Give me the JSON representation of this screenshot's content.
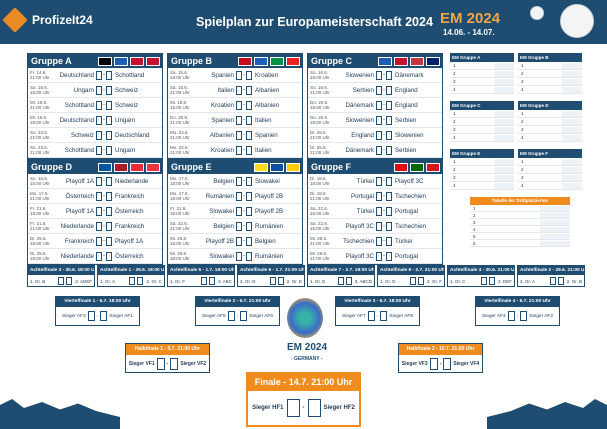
{
  "brand": "ProfizeIt24",
  "title": "Spielplan zur Europameisterschaft 2024",
  "event": "EM 2024",
  "dates": "14.06. - 14.07.",
  "groups": [
    {
      "name": "Gruppe A",
      "flags": [
        "#000000",
        "#1d5fb8",
        "#c8102e",
        "#c8102e"
      ],
      "matches": [
        {
          "d": "Fr. 14.6. 21:00 Uhr",
          "a": "Deutschland",
          "b": "Schottland"
        },
        {
          "d": "Sa. 15.6. 15:00 Uhr",
          "a": "Ungarn",
          "b": "Schweiz"
        },
        {
          "d": "Mi. 19.6. 21:00 Uhr",
          "a": "Schottland",
          "b": "Schweiz"
        },
        {
          "d": "Mi. 19.6. 18:00 Uhr",
          "a": "Deutschland",
          "b": "Ungarn"
        },
        {
          "d": "So. 23.6. 21:00 Uhr",
          "a": "Schweiz",
          "b": "Deutschland"
        },
        {
          "d": "So. 23.6. 21:00 Uhr",
          "a": "Schottland",
          "b": "Ungarn"
        }
      ]
    },
    {
      "name": "Gruppe B",
      "flags": [
        "#c60b1e",
        "#1d5fb8",
        "#009246",
        "#e22"
      ],
      "matches": [
        {
          "d": "Sa. 15.6. 18:00 Uhr",
          "a": "Spanien",
          "b": "Kroatien"
        },
        {
          "d": "Sa. 15.6. 21:00 Uhr",
          "a": "Italien",
          "b": "Albanien"
        },
        {
          "d": "Mi. 19.6. 15:00 Uhr",
          "a": "Kroatien",
          "b": "Albanien"
        },
        {
          "d": "Do. 20.6. 21:00 Uhr",
          "a": "Spanien",
          "b": "Italien"
        },
        {
          "d": "Mo. 24.6. 21:00 Uhr",
          "a": "Albanien",
          "b": "Spanien"
        },
        {
          "d": "Mo. 24.6. 21:00 Uhr",
          "a": "Kroatien",
          "b": "Italien"
        }
      ]
    },
    {
      "name": "Gruppe C",
      "flags": [
        "#1d5fb8",
        "#c8102e",
        "#c6363c",
        "#012169"
      ],
      "matches": [
        {
          "d": "So. 16.6. 18:00 Uhr",
          "a": "Slowenien",
          "b": "Dänemark"
        },
        {
          "d": "So. 16.6. 21:00 Uhr",
          "a": "Serbien",
          "b": "England"
        },
        {
          "d": "Do. 20.6. 18:00 Uhr",
          "a": "Dänemark",
          "b": "England"
        },
        {
          "d": "Do. 20.6. 18:00 Uhr",
          "a": "Slowenien",
          "b": "Serbien"
        },
        {
          "d": "Di. 25.6. 21:00 Uhr",
          "a": "England",
          "b": "Slowenien"
        },
        {
          "d": "Di. 25.6. 21:00 Uhr",
          "a": "Dänemark",
          "b": "Serbien"
        }
      ]
    },
    {
      "name": "Gruppe D",
      "flags": [
        "#0055a4",
        "#ae1c28",
        "#ed2939",
        "#ef3340"
      ],
      "matches": [
        {
          "d": "So. 16.6. 15:00 Uhr",
          "a": "Playoff 1A",
          "b": "Niederlande"
        },
        {
          "d": "Mo. 17.6. 21:00 Uhr",
          "a": "Österreich",
          "b": "Frankreich"
        },
        {
          "d": "Fr. 21.6. 18:00 Uhr",
          "a": "Playoff 1A",
          "b": "Österreich"
        },
        {
          "d": "Fr. 21.6. 21:00 Uhr",
          "a": "Niederlande",
          "b": "Frankreich"
        },
        {
          "d": "Di. 25.6. 18:00 Uhr",
          "a": "Frankreich",
          "b": "Playoff 1A"
        },
        {
          "d": "Di. 25.6. 18:00 Uhr",
          "a": "Niederlande",
          "b": "Österreich"
        }
      ]
    },
    {
      "name": "Gruppe E",
      "flags": [
        "#fdda24",
        "#0b4ea2",
        "#ffcd00"
      ],
      "matches": [
        {
          "d": "Mo. 17.6. 18:00 Uhr",
          "a": "Belgien",
          "b": "Slowakei"
        },
        {
          "d": "Mo. 17.6. 15:00 Uhr",
          "a": "Rumänien",
          "b": "Playoff 2B"
        },
        {
          "d": "Fr. 21.6. 15:00 Uhr",
          "a": "Slowakei",
          "b": "Playoff 2B"
        },
        {
          "d": "Sa. 22.6. 21:00 Uhr",
          "a": "Belgien",
          "b": "Rumänien"
        },
        {
          "d": "Mi. 26.6. 18:00 Uhr",
          "a": "Playoff 2B",
          "b": "Belgien"
        },
        {
          "d": "Mi. 26.6. 18:00 Uhr",
          "a": "Slowakei",
          "b": "Rumänien"
        }
      ]
    },
    {
      "name": "Gruppe F",
      "flags": [
        "#e30a17",
        "#006600",
        "#d7141a"
      ],
      "matches": [
        {
          "d": "Di. 18.6. 18:00 Uhr",
          "a": "Türkei",
          "b": "Playoff 3C"
        },
        {
          "d": "Di. 18.6. 21:00 Uhr",
          "a": "Portugal",
          "b": "Tschechien"
        },
        {
          "d": "Sa. 22.6. 15:00 Uhr",
          "a": "Türkei",
          "b": "Portugal"
        },
        {
          "d": "Sa. 22.6. 18:00 Uhr",
          "a": "Playoff 3C",
          "b": "Tschechien"
        },
        {
          "d": "Mi. 26.6. 21:00 Uhr",
          "a": "Tschechien",
          "b": "Türkei"
        },
        {
          "d": "Mi. 26.6. 21:00 Uhr",
          "a": "Playoff 3C",
          "b": "Portugal"
        }
      ]
    }
  ],
  "standings": [
    "EM Gruppe A",
    "EM Gruppe B",
    "EM Gruppe C",
    "EM Gruppe D",
    "EM Gruppe E",
    "EM Gruppe F"
  ],
  "third_title": "Tabelle der Drittplatzierten",
  "r16": [
    {
      "h": "Achtelfinale 3 - 30.6. 18:00 Uhr",
      "l": "1. Gr. B",
      "r": "3. ADEF"
    },
    {
      "h": "Achtelfinale 1 - 29.6. 18:00 Uhr",
      "l": "1. Gr. A",
      "r": "2. Gr. C"
    },
    {
      "h": "Achtelfinale 5 - 1.7. 18:00 Uhr",
      "l": "1. Gr. F",
      "r": "3. ABC"
    },
    {
      "h": "Achtelfinale 6 - 1.7. 21:00 Uhr",
      "l": "2. Gr. D",
      "r": "2. Gr. E"
    },
    {
      "h": "Achtelfinale 7 - 2.7. 18:00 Uhr",
      "l": "1. Gr. E",
      "r": "3. ABCD"
    },
    {
      "h": "Achtelfinale 8 - 2.7. 21:00 Uhr",
      "l": "1. Gr. D",
      "r": "2. Gr. F"
    },
    {
      "h": "Achtelfinale 4 - 30.6. 21:00 Uhr",
      "l": "1. Gr. C",
      "r": "3. DEF"
    },
    {
      "h": "Achtelfinale 2 - 29.6. 21:00 Uhr",
      "l": "2. Gr. A",
      "r": "2. Gr. B"
    }
  ],
  "qf": [
    {
      "h": "Viertelfinale 1 - 5.7. 18:00 Uhr",
      "l": "Sieger AF3",
      "r": "Sieger AF1"
    },
    {
      "h": "Viertelfinale 2 - 5.7. 21:00 Uhr",
      "l": "Sieger AF5",
      "r": "Sieger AF6"
    },
    {
      "h": "Viertelfinale 3 - 6.7. 18:00 Uhr",
      "l": "Sieger AF7",
      "r": "Sieger AF8"
    },
    {
      "h": "Viertelfinale 4 - 6.7. 21:00 Uhr",
      "l": "Sieger AF4",
      "r": "Sieger AF2"
    }
  ],
  "sf": [
    {
      "h": "Halbfinale 1 - 9.7. 21:00 Uhr",
      "l": "Sieger VF1",
      "r": "Sieger VF2"
    },
    {
      "h": "Halbfinale 2 - 10.7. 21:00 Uhr",
      "l": "Sieger VF3",
      "r": "Sieger VF4"
    }
  ],
  "final": {
    "h": "Finale  -  14.7. 21:00 Uhr",
    "l": "Sieger HF1",
    "r": "Sieger HF2"
  },
  "em_logo": "EM 2024",
  "germany": "- GERMANY -"
}
